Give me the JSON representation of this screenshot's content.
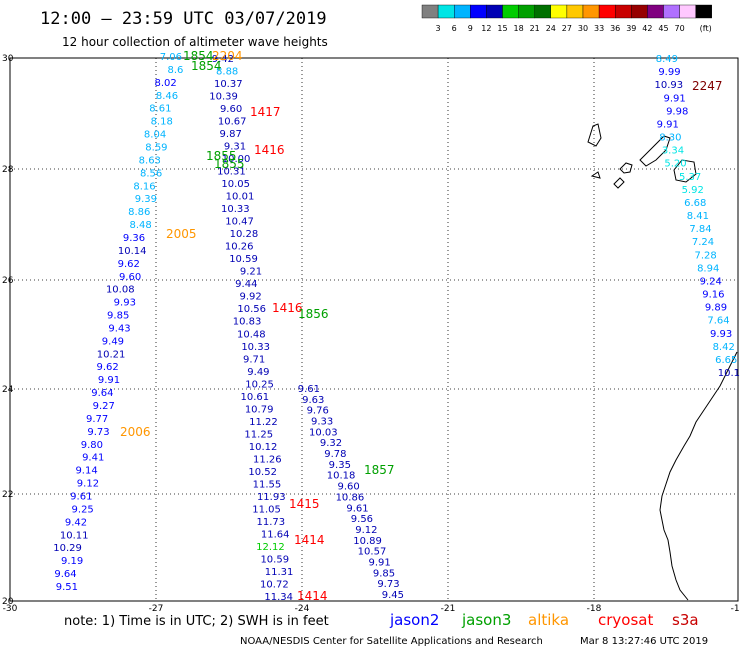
{
  "header": {
    "title": "12:00 – 23:59 UTC 03/07/2019",
    "subtitle": "12 hour collection of altimeter wave heights"
  },
  "scale": {
    "colors": [
      "#808080",
      "#00e5e5",
      "#00b4ff",
      "#0000ff",
      "#0000b4",
      "#00cc00",
      "#00a000",
      "#007000",
      "#ffff00",
      "#ffc800",
      "#ff9600",
      "#ff0000",
      "#c80000",
      "#960000",
      "#800080",
      "#b070ff",
      "#ffc8ff",
      "#000000"
    ],
    "labels": [
      "3",
      "6",
      "9",
      "12",
      "15",
      "18",
      "21",
      "24",
      "27",
      "30",
      "33",
      "36",
      "39",
      "42",
      "45",
      "70",
      "(ft)"
    ]
  },
  "axes": {
    "lon_labels": [
      "-30",
      "-27",
      "-24",
      "-21",
      "-18",
      "-15"
    ],
    "lat_labels": [
      "30",
      "28",
      "26",
      "24",
      "22",
      "20"
    ]
  },
  "map": {
    "swh_values": [
      {
        "t": "7.06",
        "c": "#00b4ff",
        "p": "t1"
      },
      {
        "t": "8.6",
        "c": "#00b4ff",
        "p": "t1"
      },
      {
        "t": "9.42",
        "c": "#0000b4",
        "p": "t2"
      },
      {
        "t": "8.88",
        "c": "#00b4ff",
        "p": "t2"
      },
      {
        "t": "8.02",
        "c": "#0000ff",
        "p": "t1"
      },
      {
        "t": "10.37",
        "c": "#0000b4",
        "p": "t2"
      },
      {
        "t": "8.46",
        "c": "#00b4ff",
        "p": "t1"
      },
      {
        "t": "10.39",
        "c": "#0000b4",
        "p": "t2"
      },
      {
        "t": "8.61",
        "c": "#00b4ff",
        "p": "t1"
      },
      {
        "t": "9.60",
        "c": "#0000b4",
        "p": "t2"
      },
      {
        "t": "8.18",
        "c": "#00b4ff",
        "p": "t1"
      },
      {
        "t": "10.67",
        "c": "#0000b4",
        "p": "t2"
      },
      {
        "t": "8.04",
        "c": "#00b4ff",
        "p": "t1"
      },
      {
        "t": "9.87",
        "c": "#0000b4",
        "p": "t2"
      },
      {
        "t": "8.59",
        "c": "#00b4ff",
        "p": "t1"
      },
      {
        "t": "9.31",
        "c": "#0000b4",
        "p": "t2"
      },
      {
        "t": "8.63",
        "c": "#00b4ff",
        "p": "t1"
      },
      {
        "t": "10.00",
        "c": "#0000b4",
        "p": "t2"
      },
      {
        "t": "8.56",
        "c": "#00b4ff",
        "p": "t1"
      },
      {
        "t": "10.31",
        "c": "#0000b4",
        "p": "t2"
      },
      {
        "t": "8.16",
        "c": "#00b4ff",
        "p": "t1"
      },
      {
        "t": "10.05",
        "c": "#0000b4",
        "p": "t2"
      },
      {
        "t": "9.39",
        "c": "#00b4ff",
        "p": "t1"
      },
      {
        "t": "10.01",
        "c": "#0000b4",
        "p": "t2"
      },
      {
        "t": "8.86",
        "c": "#00b4ff",
        "p": "t1"
      },
      {
        "t": "10.33",
        "c": "#0000b4",
        "p": "t2"
      },
      {
        "t": "8.48",
        "c": "#00b4ff",
        "p": "t1"
      },
      {
        "t": "10.47",
        "c": "#0000b4",
        "p": "t2"
      },
      {
        "t": "9.36",
        "c": "#0000ff",
        "p": "t1"
      },
      {
        "t": "10.28",
        "c": "#0000b4",
        "p": "t2"
      },
      {
        "t": "10.14",
        "c": "#0000b4",
        "p": "t1"
      },
      {
        "t": "10.26",
        "c": "#0000b4",
        "p": "t2"
      },
      {
        "t": "9.62",
        "c": "#0000ff",
        "p": "t1"
      },
      {
        "t": "10.59",
        "c": "#0000b4",
        "p": "t2"
      },
      {
        "t": "9.60",
        "c": "#0000ff",
        "p": "t1"
      },
      {
        "t": "9.21",
        "c": "#0000b4",
        "p": "t2"
      },
      {
        "t": "10.08",
        "c": "#0000b4",
        "p": "t1"
      },
      {
        "t": "9.44",
        "c": "#0000b4",
        "p": "t2"
      },
      {
        "t": "9.93",
        "c": "#0000ff",
        "p": "t1"
      },
      {
        "t": "9.92",
        "c": "#0000b4",
        "p": "t2"
      },
      {
        "t": "9.85",
        "c": "#0000ff",
        "p": "t1"
      },
      {
        "t": "10.56",
        "c": "#0000b4",
        "p": "t2"
      },
      {
        "t": "9.43",
        "c": "#0000ff",
        "p": "t1"
      },
      {
        "t": "10.83",
        "c": "#0000b4",
        "p": "t2"
      },
      {
        "t": "9.49",
        "c": "#0000ff",
        "p": "t1"
      },
      {
        "t": "10.48",
        "c": "#0000b4",
        "p": "t2"
      },
      {
        "t": "10.21",
        "c": "#0000b4",
        "p": "t1"
      },
      {
        "t": "10.33",
        "c": "#0000b4",
        "p": "t2"
      },
      {
        "t": "9.62",
        "c": "#0000ff",
        "p": "t1"
      },
      {
        "t": "9.71",
        "c": "#0000b4",
        "p": "t2"
      },
      {
        "t": "9.91",
        "c": "#0000ff",
        "p": "t1"
      },
      {
        "t": "9.49",
        "c": "#0000b4",
        "p": "t2"
      },
      {
        "t": "9.64",
        "c": "#0000ff",
        "p": "t1"
      },
      {
        "t": "10.25",
        "c": "#0000b4",
        "p": "t2"
      },
      {
        "t": "9.27",
        "c": "#0000ff",
        "p": "t1"
      },
      {
        "t": "10.61",
        "c": "#0000b4",
        "p": "t2"
      },
      {
        "t": "9.77",
        "c": "#0000ff",
        "p": "t1"
      },
      {
        "t": "10.79",
        "c": "#0000b4",
        "p": "t2"
      },
      {
        "t": "9.73",
        "c": "#0000ff",
        "p": "t1"
      },
      {
        "t": "11.22",
        "c": "#0000b4",
        "p": "t2"
      },
      {
        "t": "9.80",
        "c": "#0000ff",
        "p": "t1"
      },
      {
        "t": "11.25",
        "c": "#0000b4",
        "p": "t2"
      },
      {
        "t": "9.41",
        "c": "#0000ff",
        "p": "t1"
      },
      {
        "t": "10.12",
        "c": "#0000b4",
        "p": "t2"
      },
      {
        "t": "9.14",
        "c": "#0000ff",
        "p": "t1"
      },
      {
        "t": "11.26",
        "c": "#0000b4",
        "p": "t2"
      },
      {
        "t": "9.12",
        "c": "#0000ff",
        "p": "t1"
      },
      {
        "t": "10.52",
        "c": "#0000b4",
        "p": "t2"
      },
      {
        "t": "9.61",
        "c": "#0000ff",
        "p": "t1"
      },
      {
        "t": "11.55",
        "c": "#0000b4",
        "p": "t2"
      },
      {
        "t": "9.25",
        "c": "#0000ff",
        "p": "t1"
      },
      {
        "t": "11.93",
        "c": "#0000b4",
        "p": "t2"
      },
      {
        "t": "9.42",
        "c": "#0000ff",
        "p": "t1"
      },
      {
        "t": "11.05",
        "c": "#0000b4",
        "p": "t2"
      },
      {
        "t": "10.11",
        "c": "#0000b4",
        "p": "t1"
      },
      {
        "t": "11.73",
        "c": "#0000b4",
        "p": "t2"
      },
      {
        "t": "10.29",
        "c": "#0000b4",
        "p": "t1"
      },
      {
        "t": "11.64",
        "c": "#0000b4",
        "p": "t2"
      },
      {
        "t": "9.19",
        "c": "#0000ff",
        "p": "t1"
      },
      {
        "t": "12.12",
        "c": "#00cc00",
        "p": "t2"
      },
      {
        "t": "9.64",
        "c": "#0000ff",
        "p": "t1"
      },
      {
        "t": "10.59",
        "c": "#0000b4",
        "p": "t2"
      },
      {
        "t": "9.51",
        "c": "#0000ff",
        "p": "t1"
      },
      {
        "t": "11.31",
        "c": "#0000b4",
        "p": "t2"
      },
      {
        "t": "10.72",
        "c": "#0000b4",
        "p": "t2"
      },
      {
        "t": "11.34",
        "c": "#0000b4",
        "p": "t2"
      },
      {
        "t": "8.49",
        "c": "#00b4ff",
        "p": "e"
      },
      {
        "t": "9.99",
        "c": "#0000ff",
        "p": "e"
      },
      {
        "t": "10.93",
        "c": "#0000b4",
        "p": "e"
      },
      {
        "t": "9.91",
        "c": "#0000ff",
        "p": "e"
      },
      {
        "t": "9.98",
        "c": "#0000ff",
        "p": "e"
      },
      {
        "t": "9.91",
        "c": "#0000ff",
        "p": "e"
      },
      {
        "t": "8.30",
        "c": "#00b4ff",
        "p": "e"
      },
      {
        "t": "3.34",
        "c": "#00e5e5",
        "p": "e"
      },
      {
        "t": "5.20",
        "c": "#00e5e5",
        "p": "e"
      },
      {
        "t": "5.37",
        "c": "#00e5e5",
        "p": "e"
      },
      {
        "t": "5.92",
        "c": "#00e5e5",
        "p": "e"
      },
      {
        "t": "6.68",
        "c": "#00b4ff",
        "p": "e"
      },
      {
        "t": "8.41",
        "c": "#00b4ff",
        "p": "e"
      },
      {
        "t": "7.84",
        "c": "#00b4ff",
        "p": "e"
      },
      {
        "t": "7.24",
        "c": "#00b4ff",
        "p": "e"
      },
      {
        "t": "7.28",
        "c": "#00b4ff",
        "p": "e"
      },
      {
        "t": "8.94",
        "c": "#00b4ff",
        "p": "e"
      },
      {
        "t": "9.24",
        "c": "#0000ff",
        "p": "e"
      },
      {
        "t": "9.16",
        "c": "#0000ff",
        "p": "e"
      },
      {
        "t": "9.89",
        "c": "#0000ff",
        "p": "e"
      },
      {
        "t": "7.64",
        "c": "#00b4ff",
        "p": "e"
      },
      {
        "t": "9.93",
        "c": "#0000ff",
        "p": "e"
      },
      {
        "t": "8.42",
        "c": "#00b4ff",
        "p": "e"
      },
      {
        "t": "6.65",
        "c": "#00b4ff",
        "p": "e"
      },
      {
        "t": "10.1",
        "c": "#0000b4",
        "p": "e"
      },
      {
        "t": "9.61",
        "c": "#0000b4",
        "p": "t3"
      },
      {
        "t": "9.63",
        "c": "#0000b4",
        "p": "t3"
      },
      {
        "t": "9.76",
        "c": "#0000b4",
        "p": "t3"
      },
      {
        "t": "9.33",
        "c": "#0000b4",
        "p": "t3"
      },
      {
        "t": "10.03",
        "c": "#0000b4",
        "p": "t3"
      },
      {
        "t": "9.32",
        "c": "#0000b4",
        "p": "t3"
      },
      {
        "t": "9.78",
        "c": "#0000b4",
        "p": "t3"
      },
      {
        "t": "9.35",
        "c": "#0000b4",
        "p": "t3"
      },
      {
        "t": "10.18",
        "c": "#0000b4",
        "p": "t3"
      },
      {
        "t": "9.60",
        "c": "#0000b4",
        "p": "t3"
      },
      {
        "t": "10.86",
        "c": "#0000b4",
        "p": "t3"
      },
      {
        "t": "9.61",
        "c": "#0000b4",
        "p": "t3"
      },
      {
        "t": "9.56",
        "c": "#0000b4",
        "p": "t3"
      },
      {
        "t": "9.12",
        "c": "#0000b4",
        "p": "t3"
      },
      {
        "t": "10.89",
        "c": "#0000b4",
        "p": "t3"
      },
      {
        "t": "10.57",
        "c": "#0000b4",
        "p": "t3"
      },
      {
        "t": "9.91",
        "c": "#0000b4",
        "p": "t3"
      },
      {
        "t": "9.85",
        "c": "#0000b4",
        "p": "t3"
      },
      {
        "t": "9.73",
        "c": "#0000b4",
        "p": "t3"
      },
      {
        "t": "9.45",
        "c": "#0000b4",
        "p": "t3"
      }
    ],
    "pass_labels": [
      {
        "t": "1854",
        "c": "#00a000"
      },
      {
        "t": "2204",
        "c": "#ff9600"
      },
      {
        "t": "1854",
        "c": "#00a000"
      },
      {
        "t": "1417",
        "c": "#ff0000"
      },
      {
        "t": "1416",
        "c": "#ff0000"
      },
      {
        "t": "1855",
        "c": "#00a000"
      },
      {
        "t": "1855",
        "c": "#00a000"
      },
      {
        "t": "2005",
        "c": "#ff9600"
      },
      {
        "t": "1416",
        "c": "#ff0000"
      },
      {
        "t": "1856",
        "c": "#00a000"
      },
      {
        "t": "2006",
        "c": "#ff9600"
      },
      {
        "t": "1857",
        "c": "#00a000"
      },
      {
        "t": "1415",
        "c": "#ff0000"
      },
      {
        "t": "1414",
        "c": "#ff0000"
      },
      {
        "t": "1414",
        "c": "#ff0000"
      },
      {
        "t": "2247",
        "c": "#800000"
      }
    ]
  },
  "footer": {
    "note": "note: 1) Time is in UTC; 2) SWH is in feet",
    "satellites": [
      {
        "name": "jason2",
        "color": "#0000ff"
      },
      {
        "name": "jason3",
        "color": "#00a000"
      },
      {
        "name": "altika",
        "color": "#ff9600"
      },
      {
        "name": "cryosat",
        "color": "#ff0000"
      },
      {
        "name": "s3a",
        "color": "#c80000"
      }
    ],
    "credit": "NOAA/NESDIS Center for Satellite Applications and Research",
    "timestamp": "Mar  8 13:27:46 UTC 2019"
  }
}
